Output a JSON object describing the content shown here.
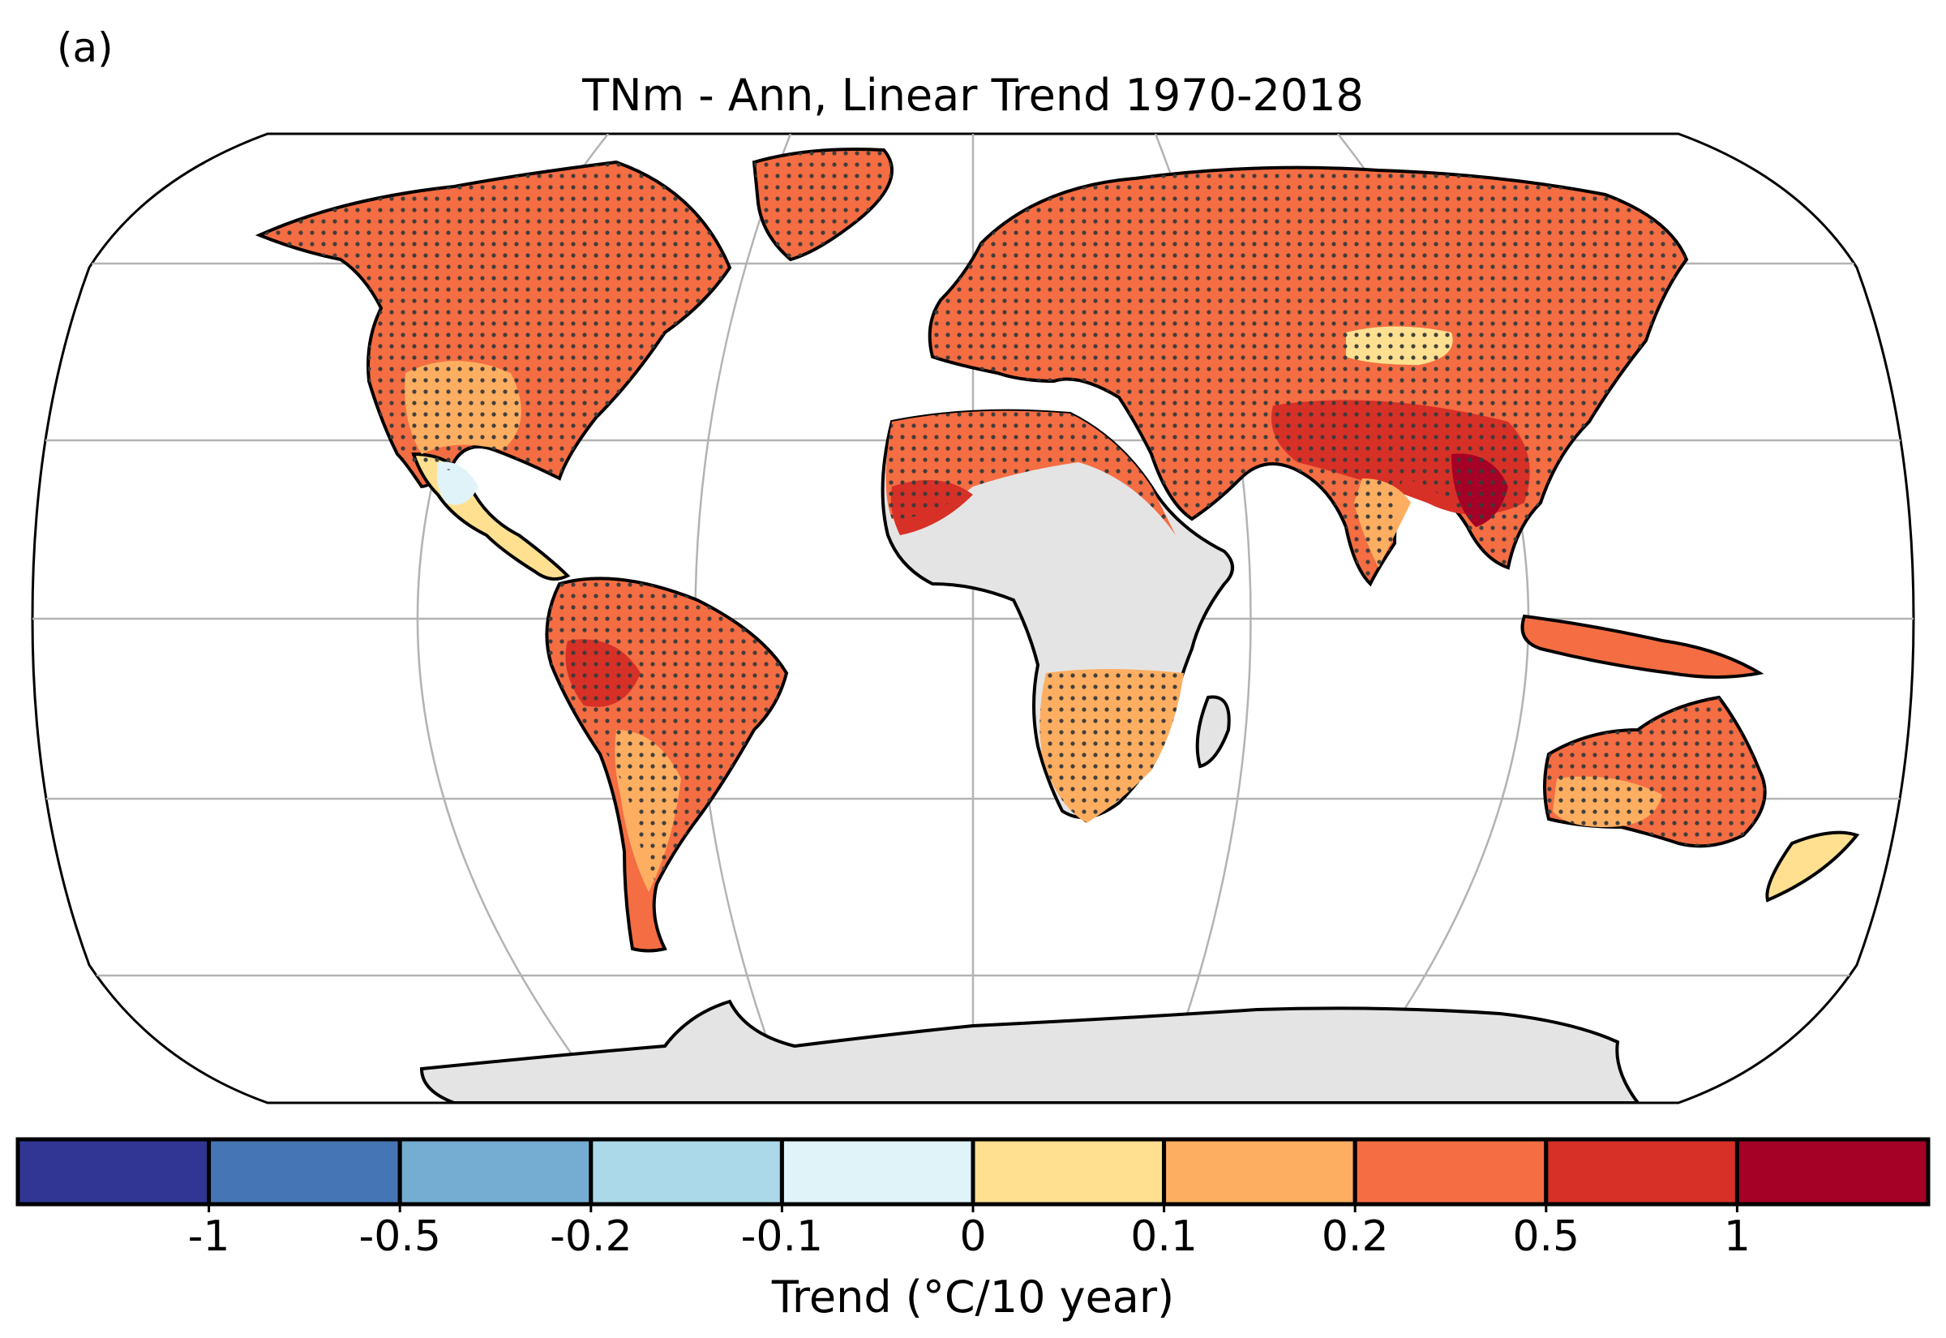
{
  "panel_label": "(a)",
  "title": "TNm - Ann, Linear Trend 1970-2018",
  "colorbar": {
    "label": "Trend (°C/10 year)",
    "colors": [
      "#313695",
      "#4575b4",
      "#74add1",
      "#abd9e9",
      "#e0f3f8",
      "#fee090",
      "#fdae61",
      "#f46d43",
      "#d73027",
      "#a50026"
    ],
    "ticks": [
      "-1",
      "-0.5",
      "-0.2",
      "-0.1",
      "0",
      "0.1",
      "0.2",
      "0.5",
      "1"
    ]
  },
  "colors": {
    "missing": "#e4e4e4",
    "coast": "#000000",
    "grid": "#b3b3b3",
    "stipple": "#3a3a3a"
  }
}
